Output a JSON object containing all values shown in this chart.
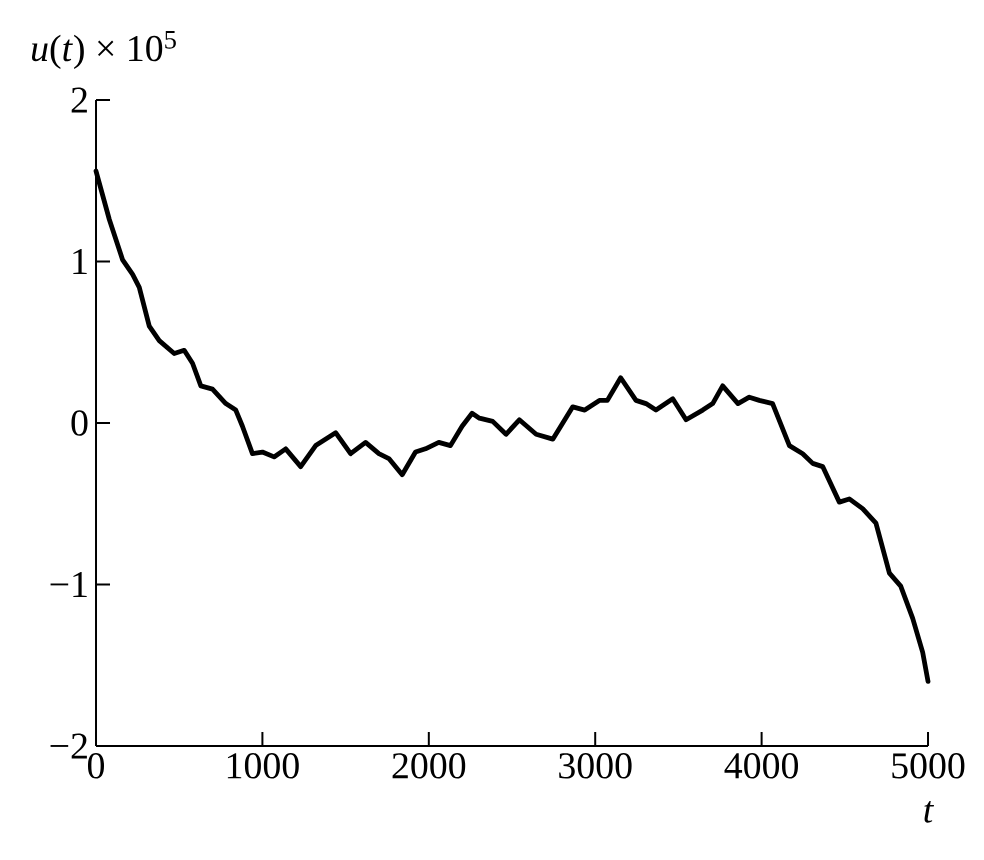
{
  "chart_data": {
    "type": "line",
    "xlabel": "*t*",
    "ylabel": "*u*(*t*) × 10$^{5}$",
    "x": [
      0,
      80,
      160,
      220,
      260,
      320,
      380,
      470,
      530,
      580,
      630,
      700,
      780,
      840,
      880,
      940,
      1000,
      1070,
      1140,
      1230,
      1320,
      1380,
      1440,
      1530,
      1620,
      1700,
      1760,
      1840,
      1920,
      1980,
      2060,
      2130,
      2200,
      2260,
      2304,
      2384,
      2464,
      2544,
      2645,
      2745,
      2865,
      2937,
      3025,
      3073,
      3153,
      3245,
      3305,
      3365,
      3466,
      3546,
      3646,
      3706,
      3766,
      3858,
      3926,
      3986,
      4066,
      4167,
      4247,
      4307,
      4367,
      4467,
      4527,
      4607,
      4687,
      4768,
      4836,
      4908,
      4968,
      5000
    ],
    "series": [
      {
        "color": "#000000",
        "values": [
          1.56,
          1.26,
          1.01,
          0.92,
          0.84,
          0.6,
          0.51,
          0.43,
          0.45,
          0.37,
          0.23,
          0.21,
          0.12,
          0.08,
          -0.02,
          -0.19,
          -0.18,
          -0.21,
          -0.16,
          -0.27,
          -0.14,
          -0.1,
          -0.06,
          -0.19,
          -0.12,
          -0.19,
          -0.22,
          -0.32,
          -0.18,
          -0.16,
          -0.12,
          -0.14,
          -0.02,
          0.06,
          0.03,
          0.01,
          -0.07,
          0.02,
          -0.07,
          -0.1,
          0.1,
          0.08,
          0.14,
          0.14,
          0.28,
          0.14,
          0.12,
          0.08,
          0.15,
          0.02,
          0.08,
          0.12,
          0.23,
          0.12,
          0.16,
          0.14,
          0.12,
          -0.14,
          -0.19,
          -0.25,
          -0.27,
          -0.49,
          -0.47,
          -0.53,
          -0.62,
          -0.93,
          -1.01,
          -1.21,
          -1.42,
          -1.6
        ]
      }
    ],
    "xlim": [
      0,
      5000
    ],
    "ylim": [
      -2,
      2
    ],
    "xticks": [
      0,
      1000,
      2000,
      3000,
      4000,
      5000
    ],
    "yticks": [
      {
        "value": -2,
        "label": "−2"
      },
      {
        "value": -1,
        "label": "−1"
      },
      0,
      1,
      2
    ],
    "line_style": "solid"
  }
}
